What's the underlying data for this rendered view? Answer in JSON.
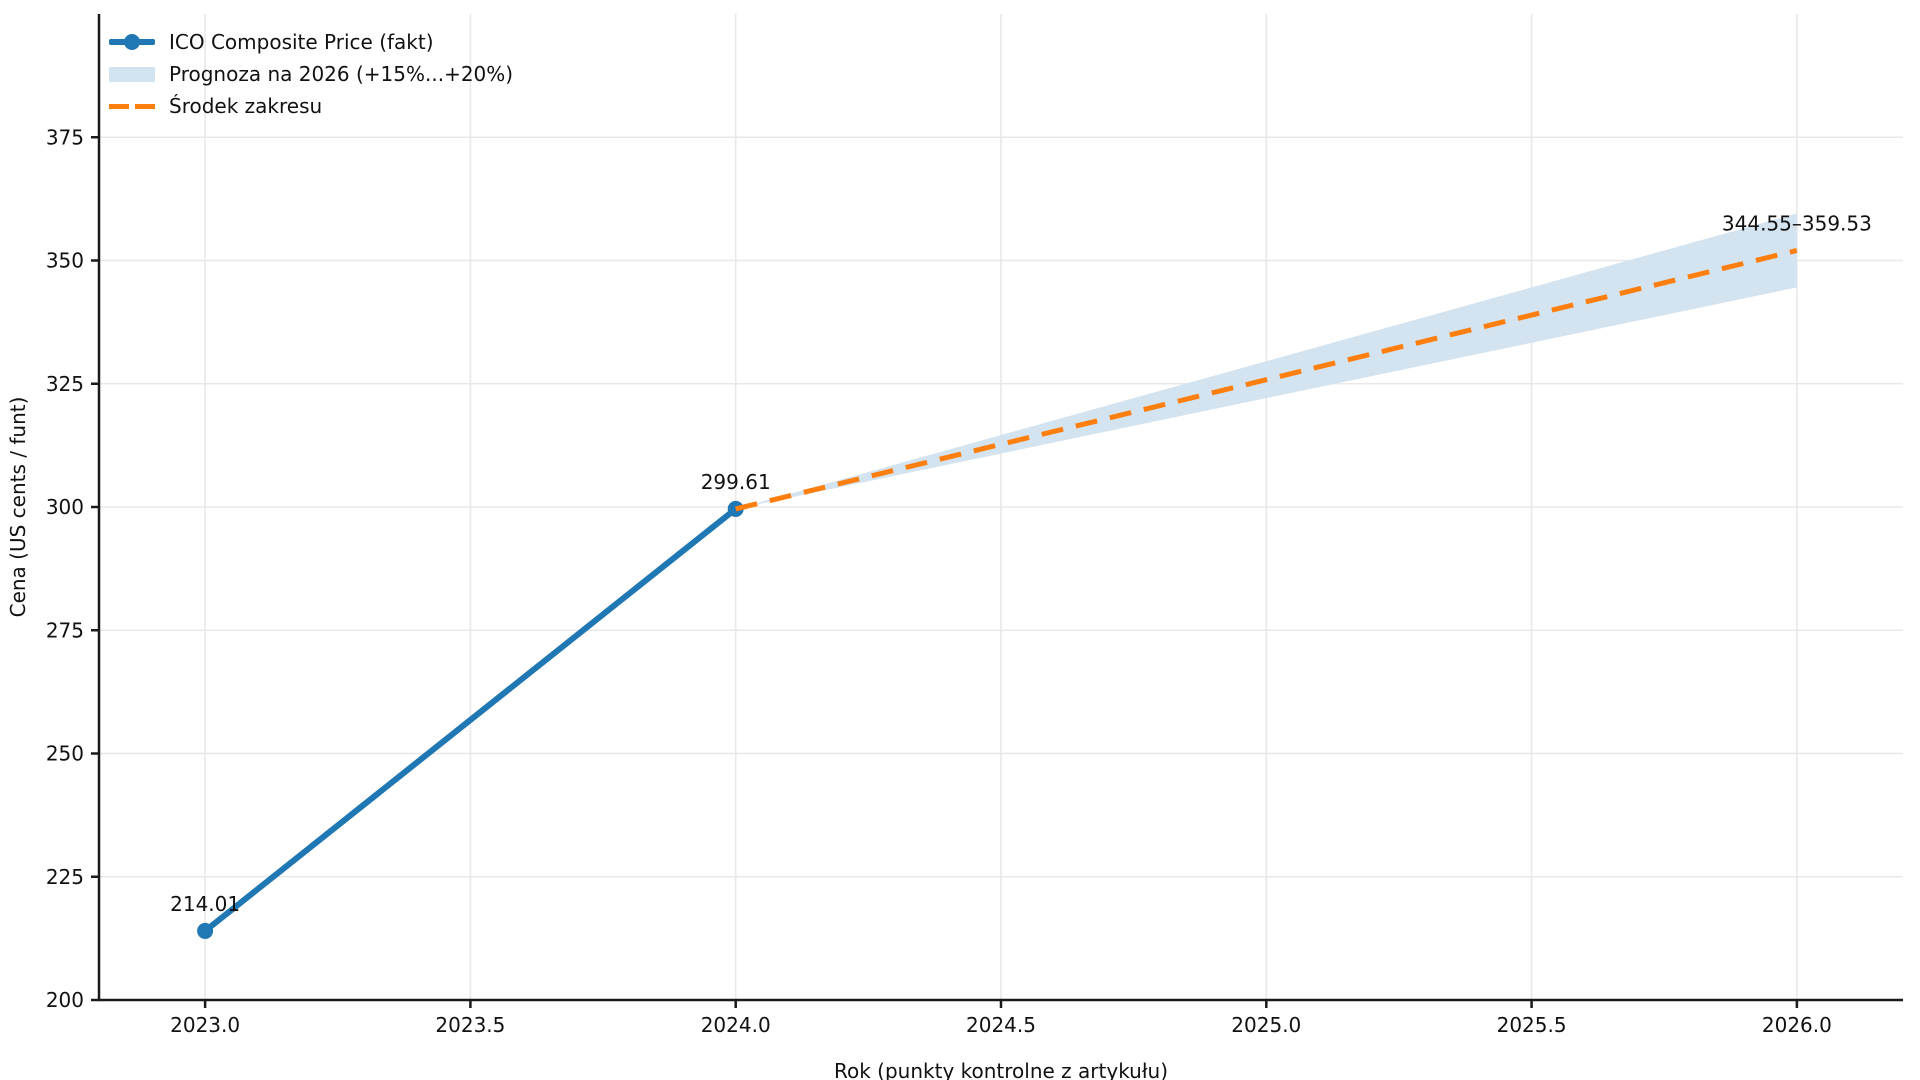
{
  "chart_data": {
    "type": "line",
    "title": "",
    "xlabel": "Rok (punkty kontrolne z artykułu)",
    "ylabel": "Cena (US cents / funt)",
    "xlim": [
      2022.8,
      2026.2
    ],
    "ylim": [
      200,
      400
    ],
    "grid": true,
    "legend_position": "upper-left",
    "x_ticks": [
      {
        "value": 2023.0,
        "label": "2023.0"
      },
      {
        "value": 2023.5,
        "label": "2023.5"
      },
      {
        "value": 2024.0,
        "label": "2024.0"
      },
      {
        "value": 2024.5,
        "label": "2024.5"
      },
      {
        "value": 2025.0,
        "label": "2025.0"
      },
      {
        "value": 2025.5,
        "label": "2025.5"
      },
      {
        "value": 2026.0,
        "label": "2026.0"
      }
    ],
    "y_ticks": [
      {
        "value": 200,
        "label": "200"
      },
      {
        "value": 225,
        "label": "225"
      },
      {
        "value": 250,
        "label": "250"
      },
      {
        "value": 275,
        "label": "275"
      },
      {
        "value": 300,
        "label": "300"
      },
      {
        "value": 325,
        "label": "325"
      },
      {
        "value": 350,
        "label": "350"
      },
      {
        "value": 375,
        "label": "375"
      }
    ],
    "series": [
      {
        "name": "ICO Composite Price (fakt)",
        "type": "line-marker",
        "color": "#1f77b4",
        "x": [
          2023,
          2024
        ],
        "y": [
          214.01,
          299.61
        ]
      },
      {
        "name": "Prognoza na 2026 (+15%...+20%)",
        "type": "band",
        "color": "#d3e3f0",
        "x": [
          2024,
          2026
        ],
        "y_lower": [
          299.61,
          344.55
        ],
        "y_upper": [
          299.61,
          359.53
        ]
      },
      {
        "name": "Środek zakresu",
        "type": "dashed-line",
        "color": "#ff7f0e",
        "x": [
          2024,
          2026
        ],
        "y": [
          299.61,
          352.04
        ]
      }
    ],
    "annotations": [
      {
        "text": "214.01",
        "x": 2023,
        "y": 214.01
      },
      {
        "text": "299.61",
        "x": 2024,
        "y": 299.61
      },
      {
        "text": "344.55–359.53",
        "x": 2026,
        "y": 352.04
      }
    ]
  },
  "style_colors": {
    "grid": "#e8e8e8",
    "axis": "#1a1a1a",
    "text": "#111111",
    "background": "#ffffff"
  }
}
